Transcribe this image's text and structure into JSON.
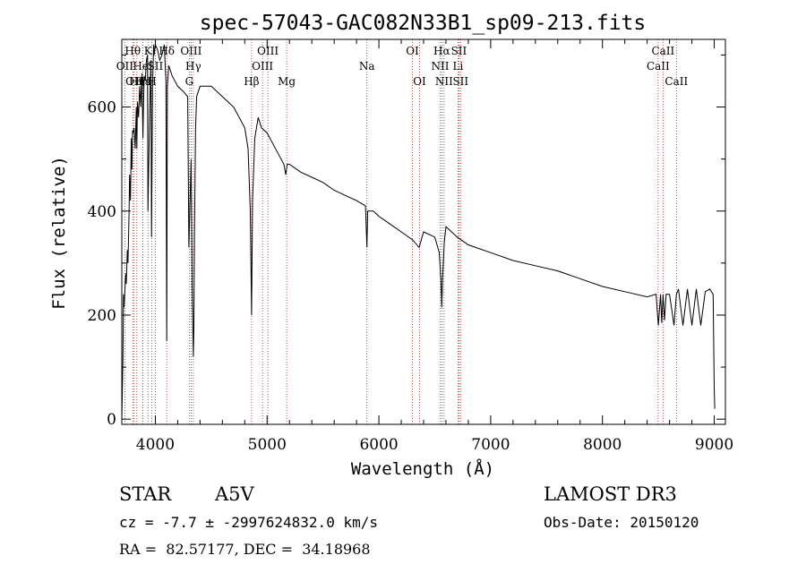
{
  "chart_data": {
    "type": "line",
    "title": "spec-57043-GAC082N33B1_sp09-213.fits",
    "xlabel": "Wavelength (Å)",
    "ylabel": "Flux (relative)",
    "xlim": [
      3700,
      9100
    ],
    "ylim": [
      -10,
      730
    ],
    "xticks": [
      4000,
      5000,
      6000,
      7000,
      8000,
      9000
    ],
    "yticks": [
      0,
      200,
      400,
      600
    ],
    "series": [
      {
        "name": "spectrum",
        "x": [
          3700,
          3710,
          3715,
          3720,
          3735,
          3740,
          3750,
          3755,
          3765,
          3770,
          3778,
          3785,
          3790,
          3797,
          3800,
          3810,
          3820,
          3830,
          3835,
          3840,
          3850,
          3860,
          3870,
          3880,
          3889,
          3895,
          3900,
          3910,
          3920,
          3930,
          3934,
          3940,
          3950,
          3960,
          3966,
          3970,
          3975,
          3985,
          3990,
          4000,
          4020,
          4040,
          4060,
          4080,
          4095,
          4102,
          4108,
          4120,
          4150,
          4200,
          4250,
          4290,
          4300,
          4320,
          4330,
          4340,
          4345,
          4350,
          4360,
          4370,
          4400,
          4450,
          4500,
          4550,
          4600,
          4650,
          4700,
          4750,
          4800,
          4830,
          4850,
          4861,
          4870,
          4890,
          4920,
          4950,
          5000,
          5050,
          5100,
          5150,
          5167,
          5173,
          5180,
          5200,
          5300,
          5400,
          5500,
          5600,
          5700,
          5800,
          5880,
          5893,
          5900,
          5950,
          6000,
          6100,
          6200,
          6300,
          6360,
          6400,
          6500,
          6540,
          6555,
          6563,
          6570,
          6585,
          6600,
          6700,
          6800,
          7000,
          7200,
          7400,
          7600,
          7800,
          8000,
          8200,
          8400,
          8480,
          8500,
          8520,
          8530,
          8542,
          8555,
          8570,
          8600,
          8640,
          8662,
          8680,
          8720,
          8760,
          8800,
          8840,
          8880,
          8920,
          8960,
          8990,
          9000,
          9005
        ],
        "values": [
          0,
          110,
          240,
          215,
          280,
          260,
          325,
          300,
          395,
          470,
          420,
          540,
          480,
          555,
          550,
          560,
          520,
          600,
          520,
          610,
          580,
          640,
          600,
          665,
          540,
          610,
          660,
          650,
          690,
          700,
          400,
          480,
          600,
          690,
          350,
          470,
          640,
          720,
          700,
          720,
          710,
          690,
          700,
          720,
          650,
          150,
          640,
          680,
          660,
          640,
          630,
          620,
          330,
          500,
          250,
          120,
          180,
          350,
          560,
          620,
          640,
          640,
          640,
          630,
          620,
          610,
          600,
          580,
          560,
          520,
          400,
          200,
          420,
          540,
          580,
          560,
          550,
          530,
          510,
          490,
          470,
          480,
          490,
          490,
          475,
          465,
          455,
          440,
          430,
          420,
          410,
          330,
          400,
          400,
          390,
          375,
          360,
          345,
          330,
          360,
          350,
          320,
          270,
          215,
          270,
          340,
          370,
          350,
          335,
          320,
          305,
          295,
          285,
          270,
          255,
          245,
          235,
          240,
          180,
          240,
          185,
          240,
          190,
          240,
          240,
          180,
          240,
          250,
          180,
          250,
          180,
          250,
          180,
          245,
          250,
          240,
          60,
          20
        ]
      }
    ],
    "lines": [
      {
        "name": "OII",
        "x": 3727,
        "row": 2
      },
      {
        "name": "Hθ",
        "x": 3798,
        "row": 1
      },
      {
        "name": "OII",
        "x": 3810,
        "row": 3
      },
      {
        "name": "Hη",
        "x": 3835,
        "row": 3
      },
      {
        "name": "HeI",
        "x": 3889,
        "row": 2
      },
      {
        "name": "Hε",
        "x": 3889,
        "row": 3
      },
      {
        "name": "K",
        "x": 3934,
        "row": 1
      },
      {
        "name": "H",
        "x": 3968,
        "row": 3
      },
      {
        "name": "SII",
        "x": 4000,
        "row": 2
      },
      {
        "name": "Hδ",
        "x": 4102,
        "row": 1
      },
      {
        "name": "G",
        "x": 4304,
        "row": 3
      },
      {
        "name": "OIII",
        "x": 4320,
        "row": 1
      },
      {
        "name": "Hγ",
        "x": 4340,
        "row": 2
      },
      {
        "name": "Hβ",
        "x": 4861,
        "row": 3
      },
      {
        "name": "OIII",
        "x": 4959,
        "row": 2
      },
      {
        "name": "OIII",
        "x": 5007,
        "row": 1
      },
      {
        "name": "Mg",
        "x": 5175,
        "row": 3
      },
      {
        "name": "Na",
        "x": 5893,
        "row": 2
      },
      {
        "name": "OI",
        "x": 6300,
        "row": 1
      },
      {
        "name": "OI",
        "x": 6364,
        "row": 3
      },
      {
        "name": "NII",
        "x": 6548,
        "row": 2
      },
      {
        "name": "Hα",
        "x": 6563,
        "row": 1
      },
      {
        "name": "NII",
        "x": 6583,
        "row": 3
      },
      {
        "name": "SII",
        "x": 6716,
        "row": 1
      },
      {
        "name": "Li",
        "x": 6708,
        "row": 2
      },
      {
        "name": "SII",
        "x": 6731,
        "row": 3
      },
      {
        "name": "CaII",
        "x": 8498,
        "row": 2
      },
      {
        "name": "CaII",
        "x": 8542,
        "row": 1
      },
      {
        "name": "CaII",
        "x": 8662,
        "row": 3
      }
    ]
  },
  "info": {
    "class": "STAR",
    "subclass": "A5V",
    "survey": "LAMOST DR3",
    "cz": "cz = -7.7 ± -2997624832.0 km/s",
    "obs_date": "Obs-Date: 20150120",
    "radec": "RA =  82.57177, DEC =  34.18968"
  },
  "colors": {
    "line_marker": "#b22222",
    "spectrum": "#000000"
  }
}
